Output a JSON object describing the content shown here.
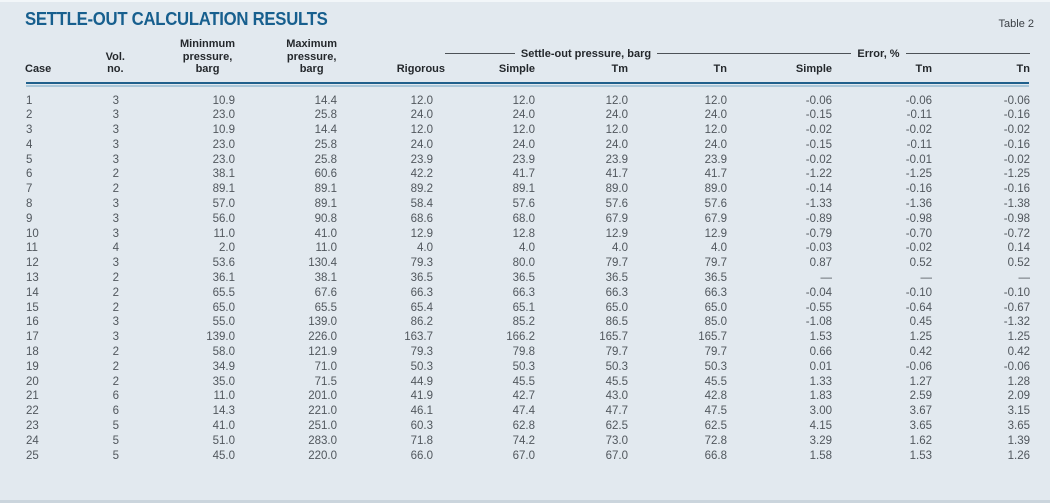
{
  "title": "SETTLE-OUT CALCULATION RESULTS",
  "table_tag": "Table 2",
  "headers": {
    "case": "Case",
    "vol": "Vol.\nno.",
    "min": "Mininmum\npressure,\nbarg",
    "max": "Maximum\npressure,\nbarg",
    "rigorous": "Rigorous",
    "settle_group": "Settle-out pressure, barg",
    "error_group": "Error, %",
    "settle_simple": "Simple",
    "settle_tm": "Tm",
    "settle_tn": "Tn",
    "error_simple": "Simple",
    "error_tm": "Tm",
    "error_tn": "Tn"
  },
  "colors": {
    "background": "#e2e9ef",
    "title_blue": "#175f8e",
    "rule_dark_blue": "#20608c",
    "rule_light_blue": "#a9c7d9",
    "data_text": "#51575d"
  },
  "rows": [
    [
      "1",
      "3",
      "10.9",
      "14.4",
      "12.0",
      "12.0",
      "12.0",
      "12.0",
      "-0.06",
      "-0.06",
      "-0.06"
    ],
    [
      "2",
      "3",
      "23.0",
      "25.8",
      "24.0",
      "24.0",
      "24.0",
      "24.0",
      "-0.15",
      "-0.11",
      "-0.16"
    ],
    [
      "3",
      "3",
      "10.9",
      "14.4",
      "12.0",
      "12.0",
      "12.0",
      "12.0",
      "-0.02",
      "-0.02",
      "-0.02"
    ],
    [
      "4",
      "3",
      "23.0",
      "25.8",
      "24.0",
      "24.0",
      "24.0",
      "24.0",
      "-0.15",
      "-0.11",
      "-0.16"
    ],
    [
      "5",
      "3",
      "23.0",
      "25.8",
      "23.9",
      "23.9",
      "23.9",
      "23.9",
      "-0.02",
      "-0.01",
      "-0.02"
    ],
    [
      "6",
      "2",
      "38.1",
      "60.6",
      "42.2",
      "41.7",
      "41.7",
      "41.7",
      "-1.22",
      "-1.25",
      "-1.25"
    ],
    [
      "7",
      "2",
      "89.1",
      "89.1",
      "89.2",
      "89.1",
      "89.0",
      "89.0",
      "-0.14",
      "-0.16",
      "-0.16"
    ],
    [
      "8",
      "3",
      "57.0",
      "89.1",
      "58.4",
      "57.6",
      "57.6",
      "57.6",
      "-1.33",
      "-1.36",
      "-1.38"
    ],
    [
      "9",
      "3",
      "56.0",
      "90.8",
      "68.6",
      "68.0",
      "67.9",
      "67.9",
      "-0.89",
      "-0.98",
      "-0.98"
    ],
    [
      "10",
      "3",
      "11.0",
      "41.0",
      "12.9",
      "12.8",
      "12.9",
      "12.9",
      "-0.79",
      "-0.70",
      "-0.72"
    ],
    [
      "11",
      "4",
      "2.0",
      "11.0",
      "4.0",
      "4.0",
      "4.0",
      "4.0",
      "-0.03",
      "-0.02",
      "0.14"
    ],
    [
      "12",
      "3",
      "53.6",
      "130.4",
      "79.3",
      "80.0",
      "79.7",
      "79.7",
      "0.87",
      "0.52",
      "0.52"
    ],
    [
      "13",
      "2",
      "36.1",
      "38.1",
      "36.5",
      "36.5",
      "36.5",
      "36.5",
      "—",
      "—",
      "—"
    ],
    [
      "14",
      "2",
      "65.5",
      "67.6",
      "66.3",
      "66.3",
      "66.3",
      "66.3",
      "-0.04",
      "-0.10",
      "-0.10"
    ],
    [
      "15",
      "2",
      "65.0",
      "65.5",
      "65.4",
      "65.1",
      "65.0",
      "65.0",
      "-0.55",
      "-0.64",
      "-0.67"
    ],
    [
      "16",
      "3",
      "55.0",
      "139.0",
      "86.2",
      "85.2",
      "86.5",
      "85.0",
      "-1.08",
      "0.45",
      "-1.32"
    ],
    [
      "17",
      "3",
      "139.0",
      "226.0",
      "163.7",
      "166.2",
      "165.7",
      "165.7",
      "1.53",
      "1.25",
      "1.25"
    ],
    [
      "18",
      "2",
      "58.0",
      "121.9",
      "79.3",
      "79.8",
      "79.7",
      "79.7",
      "0.66",
      "0.42",
      "0.42"
    ],
    [
      "19",
      "2",
      "34.9",
      "71.0",
      "50.3",
      "50.3",
      "50.3",
      "50.3",
      "0.01",
      "-0.06",
      "-0.06"
    ],
    [
      "20",
      "2",
      "35.0",
      "71.5",
      "44.9",
      "45.5",
      "45.5",
      "45.5",
      "1.33",
      "1.27",
      "1.28"
    ],
    [
      "21",
      "6",
      "11.0",
      "201.0",
      "41.9",
      "42.7",
      "43.0",
      "42.8",
      "1.83",
      "2.59",
      "2.09"
    ],
    [
      "22",
      "6",
      "14.3",
      "221.0",
      "46.1",
      "47.4",
      "47.7",
      "47.5",
      "3.00",
      "3.67",
      "3.15"
    ],
    [
      "23",
      "5",
      "41.0",
      "251.0",
      "60.3",
      "62.8",
      "62.5",
      "62.5",
      "4.15",
      "3.65",
      "3.65"
    ],
    [
      "24",
      "5",
      "51.0",
      "283.0",
      "71.8",
      "74.2",
      "73.0",
      "72.8",
      "3.29",
      "1.62",
      "1.39"
    ],
    [
      "25",
      "5",
      "45.0",
      "220.0",
      "66.0",
      "67.0",
      "67.0",
      "66.8",
      "1.58",
      "1.53",
      "1.26"
    ]
  ]
}
